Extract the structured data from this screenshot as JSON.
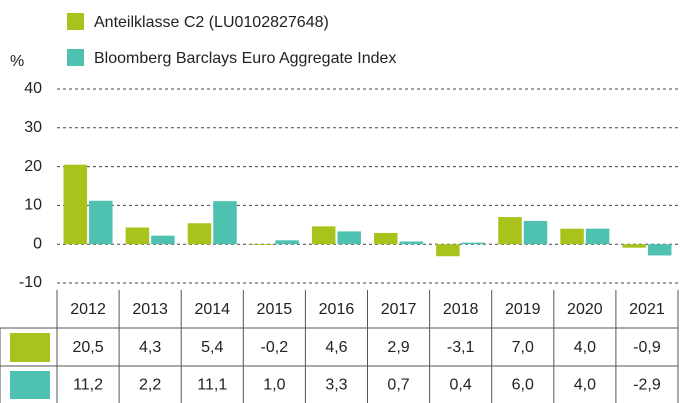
{
  "chart_data": {
    "type": "bar",
    "y_label": "%",
    "categories": [
      "2012",
      "2013",
      "2014",
      "2015",
      "2016",
      "2017",
      "2018",
      "2019",
      "2020",
      "2021"
    ],
    "series": [
      {
        "name": "Anteilklasse C2 (LU0102827648)",
        "color": "#a9c21c",
        "values": [
          20.5,
          4.3,
          5.4,
          -0.2,
          4.6,
          2.9,
          -3.1,
          7.0,
          4.0,
          -0.9
        ],
        "value_labels": [
          "20,5",
          "4,3",
          "5,4",
          "-0,2",
          "4,6",
          "2,9",
          "-3,1",
          "7,0",
          "4,0",
          "-0,9"
        ]
      },
      {
        "name": "Bloomberg Barclays Euro Aggregate Index",
        "color": "#4ec1b1",
        "values": [
          11.2,
          2.2,
          11.1,
          1.0,
          3.3,
          0.7,
          0.4,
          6.0,
          4.0,
          -2.9
        ],
        "value_labels": [
          "11,2",
          "2,2",
          "11,1",
          "1,0",
          "3,3",
          "0,7",
          "0,4",
          "6,0",
          "4,0",
          "-2,9"
        ]
      }
    ],
    "ylim": [
      -10,
      40
    ],
    "yticks": [
      -10,
      0,
      10,
      20,
      30,
      40
    ],
    "grid": true,
    "legend": "top-left"
  }
}
